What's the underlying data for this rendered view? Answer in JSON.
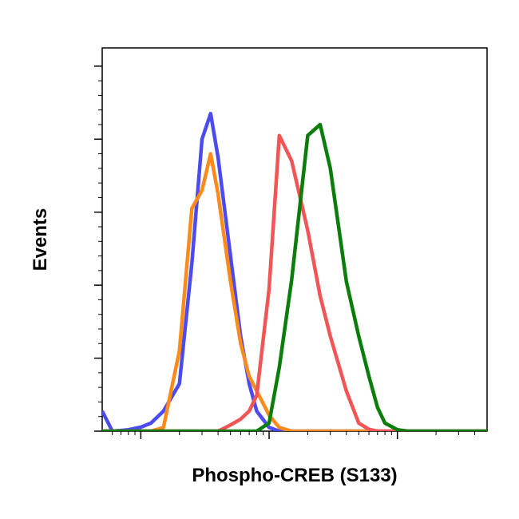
{
  "chart_data": {
    "type": "line",
    "xlabel": "Phospho-CREB (S133)",
    "ylabel": "Events",
    "xscale": "log",
    "xlim": [
      0.5,
      500
    ],
    "xticks": [
      1,
      10,
      100
    ],
    "ylim": [
      0,
      105
    ],
    "yticks": [
      0,
      20,
      40,
      60,
      80,
      100
    ],
    "x": [
      0.5,
      0.6,
      0.7,
      0.8,
      1,
      1.2,
      1.5,
      2,
      2.5,
      3,
      3.5,
      4,
      5,
      6,
      7,
      8,
      10,
      12,
      15,
      20,
      25,
      30,
      40,
      50,
      60,
      70,
      80,
      100,
      120,
      150,
      200,
      250,
      300,
      400,
      500
    ],
    "series": [
      {
        "color": "#4b4bf0",
        "values": [
          5.5,
          0,
          0.2,
          0.4,
          1.1,
          2.2,
          5.5,
          13,
          46,
          80,
          87,
          75,
          48,
          26,
          13,
          5.5,
          1,
          0,
          0,
          0,
          0,
          0,
          0,
          0,
          0,
          0,
          0,
          0,
          0,
          0,
          0,
          0,
          0,
          0,
          0
        ]
      },
      {
        "color": "#ff8a1c",
        "values": [
          0,
          0,
          0,
          0,
          0,
          0,
          1,
          22,
          61,
          66,
          76,
          65,
          41,
          24,
          15,
          11,
          4.4,
          1,
          0,
          0,
          0,
          0,
          0,
          0,
          0,
          0,
          0,
          0,
          0,
          0,
          0,
          0,
          0,
          0,
          0
        ]
      },
      {
        "color": "#f25555",
        "values": [
          0,
          0,
          0,
          0,
          0,
          0,
          0,
          0,
          0,
          0,
          0,
          0,
          1.7,
          3.3,
          5.5,
          9.8,
          39,
          81,
          74,
          55,
          37,
          26,
          11,
          2.2,
          0.5,
          0,
          0,
          0,
          0,
          0,
          0,
          0,
          0,
          0,
          0
        ]
      },
      {
        "color": "#0b7d0b",
        "values": [
          0,
          0,
          0,
          0,
          0,
          0,
          0,
          0,
          0,
          0,
          0,
          0,
          0,
          0,
          0,
          0,
          2.2,
          17.5,
          41.5,
          81,
          84,
          72,
          41,
          26,
          15,
          6.5,
          2.2,
          0.4,
          0,
          0,
          0,
          0,
          0,
          0,
          0
        ]
      }
    ]
  }
}
